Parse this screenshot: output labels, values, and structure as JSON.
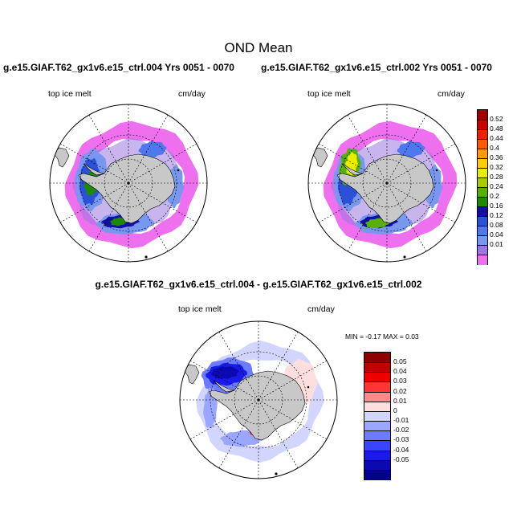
{
  "figure": {
    "title": "OND Mean",
    "left_case": "g.e15.GIAF.T62_gx1v6.e15_ctrl.004  Yrs 0051 - 0070",
    "right_case": "g.e15.GIAF.T62_gx1v6.e15_ctrl.002  Yrs 0051 - 0070",
    "diff_title": "g.e15.GIAF.T62_gx1v6.e15_ctrl.004 - g.e15.GIAF.T62_gx1v6.e15_ctrl.002",
    "variable": "top ice melt",
    "units": "cm/day",
    "minmax_text": "MIN =  -0.17 MAX =   0.03"
  },
  "colorbars": {
    "main": {
      "colors": [
        "#9c0000",
        "#c80000",
        "#ee2000",
        "#ff5a00",
        "#ff9a00",
        "#ffcc00",
        "#ecec00",
        "#a8cc00",
        "#58b000",
        "#1e8a00",
        "#1010a8",
        "#2c50d8",
        "#4e78ee",
        "#7898f0",
        "#9a78e0",
        "#ee70ee"
      ],
      "labels": [
        "0.52",
        "0.48",
        "0.44",
        "0.4",
        "0.36",
        "0.32",
        "0.28",
        "0.24",
        "0.2",
        "0.16",
        "0.12",
        "0.08",
        "0.04",
        "0.01"
      ]
    },
    "diff": {
      "colors": [
        "#8c0000",
        "#c00000",
        "#ee0000",
        "#ff3434",
        "#ff8a8a",
        "#ffdede",
        "#d2d6ff",
        "#9aa6ff",
        "#6c7cff",
        "#3a44ff",
        "#1a1ae8",
        "#0a0ab0",
        "#000088"
      ],
      "labels": [
        "0.05",
        "0.04",
        "0.03",
        "0.02",
        "0.01",
        "0",
        "-0.01",
        "-0.02",
        "-0.03",
        "-0.04",
        "-0.05"
      ]
    }
  }
}
